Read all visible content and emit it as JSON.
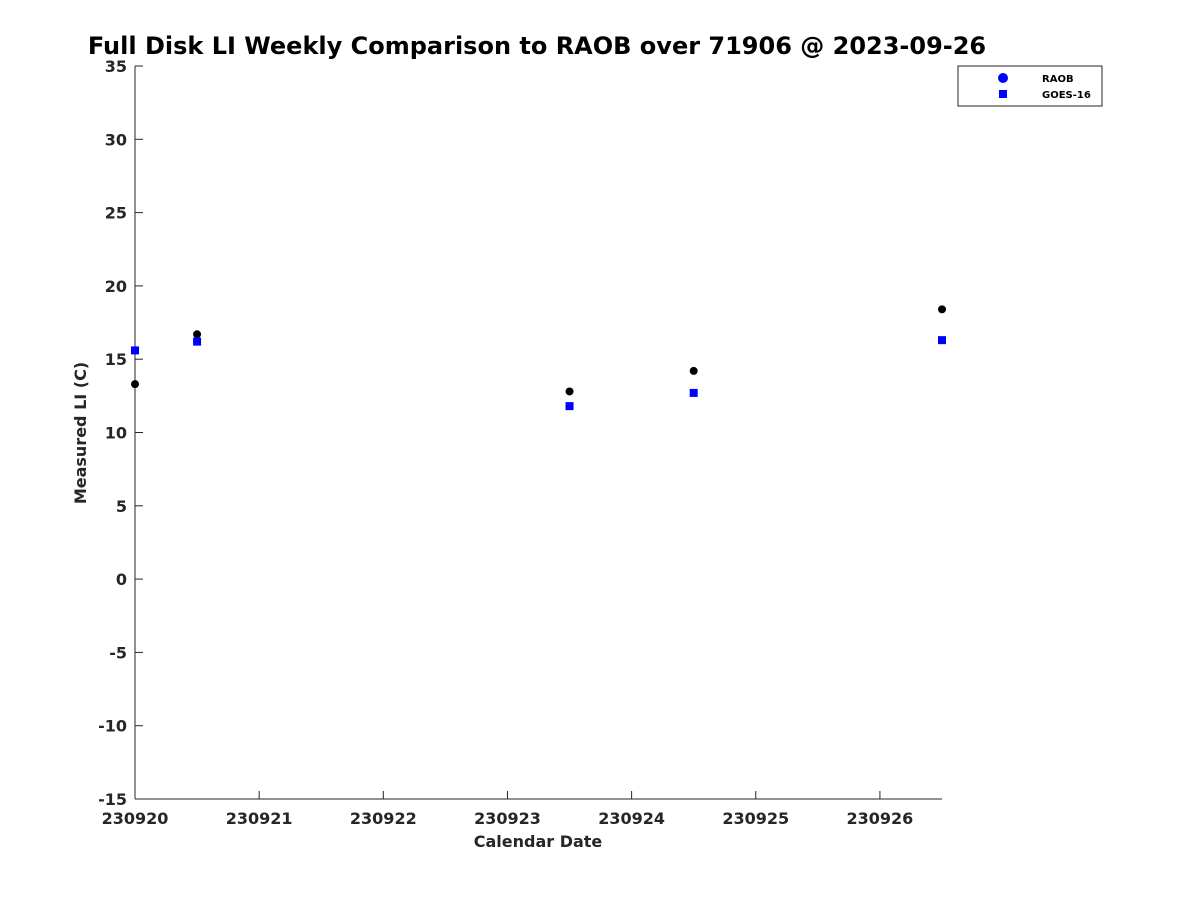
{
  "chart_data": {
    "type": "scatter",
    "title": "Full Disk LI Weekly Comparison to RAOB over 71906 @ 2023-09-26",
    "xlabel": "Calendar Date",
    "ylabel": "Measured LI (C)",
    "xlim": [
      "2023-09-20",
      "2023-09-26T12:00"
    ],
    "ylim": [
      -15,
      35
    ],
    "x_tick_labels": [
      "230920",
      "230921",
      "230922",
      "230923",
      "230924",
      "230925",
      "230926"
    ],
    "y_tick_labels": [
      "-15",
      "-10",
      "-5",
      "0",
      "5",
      "10",
      "15",
      "20",
      "25",
      "30",
      "35"
    ],
    "y_ticks": [
      -15,
      -10,
      -5,
      0,
      5,
      10,
      15,
      20,
      25,
      30,
      35
    ],
    "grid": false,
    "legend_position": "top-right",
    "series": [
      {
        "name": "RAOB",
        "marker": "circle",
        "color": "#000000",
        "legend_color": "#0000ff",
        "x": [
          "2023-09-20T00:00",
          "2023-09-20T12:00",
          "2023-09-23T12:00",
          "2023-09-24T12:00",
          "2023-09-26T12:00"
        ],
        "y": [
          13.3,
          16.7,
          12.8,
          14.2,
          18.4
        ]
      },
      {
        "name": "GOES-16",
        "marker": "square",
        "color": "#0000ff",
        "legend_color": "#0000ff",
        "x": [
          "2023-09-20T00:00",
          "2023-09-20T12:00",
          "2023-09-23T12:00",
          "2023-09-24T12:00",
          "2023-09-26T12:00"
        ],
        "y": [
          15.6,
          16.2,
          11.8,
          12.7,
          16.3
        ]
      }
    ]
  }
}
